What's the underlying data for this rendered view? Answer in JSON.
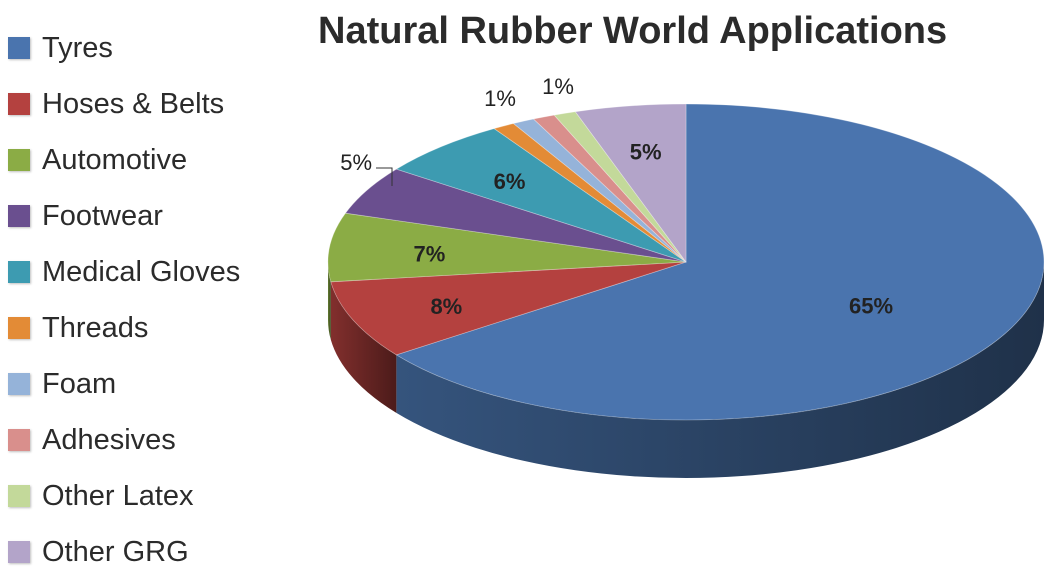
{
  "chart_data": {
    "type": "pie",
    "title": "Natural Rubber World Applications",
    "legend_position": "left",
    "slices": [
      {
        "label": "Tyres",
        "value": 65,
        "display": "65%",
        "color": "#4a74ae"
      },
      {
        "label": "Hoses & Belts",
        "value": 8,
        "display": "8%",
        "color": "#b4413f"
      },
      {
        "label": "Automotive",
        "value": 7,
        "display": "7%",
        "color": "#8bac45"
      },
      {
        "label": "Footwear",
        "value": 5,
        "display": "5%",
        "color": "#6a4f8f"
      },
      {
        "label": "Medical Gloves",
        "value": 6,
        "display": "6%",
        "color": "#3d9bb1"
      },
      {
        "label": "Threads",
        "value": 1,
        "display": "1%",
        "color": "#e38b36"
      },
      {
        "label": "Foam",
        "value": 1,
        "display": "",
        "color": "#95b3d9"
      },
      {
        "label": "Adhesives",
        "value": 1,
        "display": "1%",
        "color": "#d98f8c"
      },
      {
        "label": "Other Latex",
        "value": 1,
        "display": "",
        "color": "#c3d99a"
      },
      {
        "label": "Other GRG",
        "value": 5,
        "display": "5%",
        "color": "#b3a4c9"
      }
    ]
  }
}
